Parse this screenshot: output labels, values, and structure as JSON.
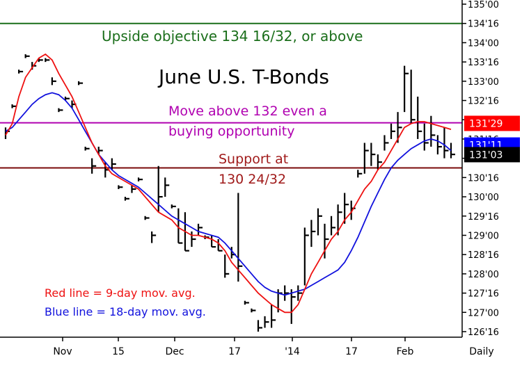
{
  "chart_data": {
    "type": "ohlc",
    "title": "June U.S. T-Bonds",
    "x_tick_labels": [
      "Nov",
      "15",
      "Dec",
      "17",
      "'14",
      "17",
      "Feb",
      "Daily"
    ],
    "y_tick_labels": [
      "126'16",
      "127'00",
      "127'16",
      "128'00",
      "128'16",
      "129'00",
      "129'16",
      "130'00",
      "130'16",
      "131'00",
      "131'16",
      "132'00",
      "132'16",
      "133'00",
      "133'16",
      "134'00",
      "134'16",
      "135'00"
    ],
    "ylim": [
      126.5,
      135.0
    ],
    "price_badges": [
      {
        "label": "131'29",
        "value": 131.906,
        "bg": "#ff0000",
        "fg": "#ffffff"
      },
      {
        "label": "131'11",
        "value": 131.344,
        "bg": "#0000ff",
        "fg": "#ffffff"
      },
      {
        "label": "131'03",
        "value": 131.094,
        "bg": "#000000",
        "fg": "#ffffff"
      }
    ],
    "horizontal_lines": [
      {
        "name": "upside-objective",
        "value": 134.5,
        "color": "#1a6e1a"
      },
      {
        "name": "move-above",
        "value": 131.92,
        "color": "#b000b0"
      },
      {
        "name": "support",
        "value": 130.75,
        "color": "#7a0a0a"
      }
    ],
    "annotations": {
      "objective": "Upside objective 134 16/32, or above",
      "move_line1": "Move above 132 even a",
      "move_line2": "buying opportunity",
      "support_line1": "Support at",
      "support_line2": "130 24/32",
      "red_legend": "Red line = 9-day mov. avg.",
      "blue_legend": "Blue line = 18-day mov. avg."
    },
    "series_colors": {
      "price": "#000000",
      "ma9": "#ee1111",
      "ma18": "#1111dd"
    },
    "ohlc": [
      [
        131.8,
        131.5,
        131.7
      ],
      [
        132.4,
        132.3,
        132.35
      ],
      [
        133.3,
        133.2,
        133.25
      ],
      [
        133.7,
        133.6,
        133.65
      ],
      [
        133.5,
        133.3,
        133.4
      ],
      [
        133.6,
        133.5,
        133.55
      ],
      [
        133.6,
        133.5,
        133.55
      ],
      [
        133.1,
        132.9,
        133.0
      ],
      [
        132.3,
        132.2,
        132.25
      ],
      [
        132.6,
        132.5,
        132.55
      ],
      [
        132.5,
        132.3,
        132.4
      ],
      [
        133.0,
        132.9,
        132.95
      ],
      [
        131.3,
        131.2,
        131.25
      ],
      [
        131.0,
        130.6,
        130.8
      ],
      [
        131.3,
        131.1,
        131.2
      ],
      [
        130.9,
        130.5,
        130.7
      ],
      [
        131.0,
        130.7,
        130.85
      ],
      [
        130.3,
        130.2,
        130.25
      ],
      [
        130.0,
        129.9,
        129.95
      ],
      [
        130.3,
        130.1,
        130.2
      ],
      [
        130.5,
        130.4,
        130.45
      ],
      [
        129.5,
        129.4,
        129.45
      ],
      [
        129.1,
        128.8,
        129.0
      ],
      [
        130.8,
        129.6,
        130.0
      ],
      [
        130.5,
        130.0,
        130.3
      ],
      [
        129.8,
        129.7,
        129.75
      ],
      [
        129.7,
        128.8,
        128.8
      ],
      [
        129.6,
        128.6,
        128.6
      ],
      [
        129.1,
        128.7,
        128.9
      ],
      [
        129.3,
        129.0,
        129.2
      ],
      [
        129.0,
        128.9,
        128.95
      ],
      [
        129.0,
        128.7,
        128.7
      ],
      [
        128.9,
        128.6,
        128.6
      ],
      [
        128.5,
        127.9,
        128.0
      ],
      [
        128.7,
        128.4,
        128.5
      ],
      [
        130.1,
        127.8,
        128.2
      ],
      [
        127.3,
        127.2,
        127.25
      ],
      [
        127.1,
        127.0,
        127.05
      ],
      [
        126.8,
        126.5,
        126.6
      ],
      [
        126.9,
        126.6,
        126.75
      ],
      [
        127.2,
        126.6,
        126.8
      ],
      [
        127.6,
        127.0,
        127.5
      ],
      [
        127.7,
        127.3,
        127.5
      ],
      [
        127.6,
        126.7,
        127.4
      ],
      [
        127.7,
        127.3,
        127.5
      ],
      [
        129.2,
        127.7,
        129.0
      ],
      [
        129.4,
        128.7,
        129.1
      ],
      [
        129.7,
        129.0,
        129.5
      ],
      [
        129.3,
        128.4,
        128.9
      ],
      [
        129.5,
        129.0,
        129.2
      ],
      [
        129.8,
        129.0,
        129.6
      ],
      [
        130.1,
        129.3,
        129.8
      ],
      [
        129.9,
        129.4,
        129.7
      ],
      [
        130.7,
        130.5,
        130.6
      ],
      [
        131.4,
        130.6,
        131.2
      ],
      [
        131.4,
        130.8,
        131.1
      ],
      [
        131.1,
        130.7,
        130.9
      ],
      [
        131.6,
        131.2,
        131.4
      ],
      [
        131.9,
        131.5,
        131.7
      ],
      [
        132.2,
        131.4,
        131.8
      ],
      [
        133.4,
        132.2,
        133.2
      ],
      [
        133.3,
        131.9,
        132.0
      ],
      [
        132.6,
        131.5,
        131.7
      ],
      [
        131.9,
        131.2,
        131.4
      ],
      [
        132.1,
        131.3,
        131.6
      ],
      [
        131.6,
        131.1,
        131.3
      ],
      [
        131.8,
        131.0,
        131.2
      ],
      [
        131.4,
        131.0,
        131.1
      ]
    ],
    "ma9": [
      131.6,
      131.9,
      132.6,
      133.1,
      133.35,
      133.6,
      133.7,
      133.55,
      133.2,
      132.9,
      132.6,
      132.2,
      131.8,
      131.4,
      131.1,
      130.8,
      130.6,
      130.5,
      130.4,
      130.3,
      130.2,
      130.0,
      129.8,
      129.6,
      129.5,
      129.4,
      129.2,
      129.1,
      129.0,
      129.0,
      128.95,
      128.9,
      128.8,
      128.6,
      128.3,
      128.1,
      127.9,
      127.7,
      127.5,
      127.35,
      127.2,
      127.1,
      127.0,
      127.0,
      127.2,
      127.6,
      128.0,
      128.3,
      128.6,
      128.9,
      129.1,
      129.4,
      129.6,
      129.9,
      130.2,
      130.4,
      130.7,
      130.9,
      131.2,
      131.5,
      131.8,
      131.9,
      131.95,
      131.95,
      131.9,
      131.85,
      131.8,
      131.75
    ],
    "ma18": [
      131.7,
      131.8,
      132.0,
      132.2,
      132.4,
      132.55,
      132.65,
      132.7,
      132.65,
      132.5,
      132.3,
      132.0,
      131.7,
      131.4,
      131.1,
      130.9,
      130.7,
      130.55,
      130.45,
      130.35,
      130.25,
      130.1,
      129.95,
      129.8,
      129.65,
      129.5,
      129.4,
      129.3,
      129.2,
      129.1,
      129.05,
      129.0,
      128.95,
      128.8,
      128.6,
      128.4,
      128.2,
      128.0,
      127.8,
      127.65,
      127.55,
      127.5,
      127.45,
      127.5,
      127.55,
      127.6,
      127.7,
      127.8,
      127.9,
      128.0,
      128.1,
      128.3,
      128.6,
      128.95,
      129.35,
      129.75,
      130.1,
      130.45,
      130.75,
      130.95,
      131.1,
      131.25,
      131.35,
      131.45,
      131.5,
      131.45,
      131.35,
      131.2
    ]
  }
}
